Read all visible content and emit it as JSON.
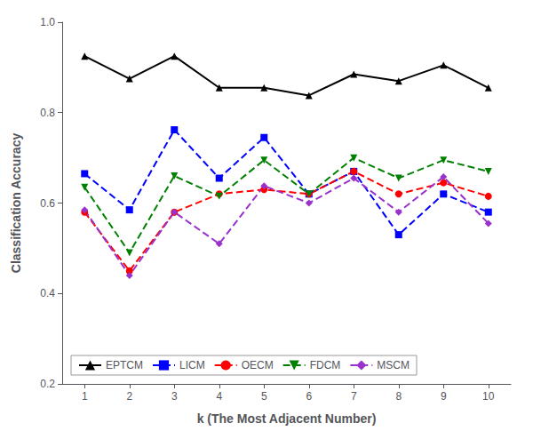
{
  "chart_data": {
    "type": "line",
    "xlabel": "k (The Most Adjacent Number)",
    "ylabel": "Classification Accuracy",
    "x": [
      1,
      2,
      3,
      4,
      5,
      6,
      7,
      8,
      9,
      10
    ],
    "series": [
      {
        "name": "EPTCM",
        "color": "#000000",
        "marker": "triangle",
        "line_style": "solid",
        "values": [
          0.925,
          0.875,
          0.925,
          0.855,
          0.855,
          0.838,
          0.885,
          0.87,
          0.905,
          0.855
        ]
      },
      {
        "name": "LICM",
        "color": "#0000FF",
        "marker": "square",
        "line_style": "dashed",
        "values": [
          0.665,
          0.585,
          0.762,
          0.655,
          0.745,
          0.62,
          0.67,
          0.53,
          0.62,
          0.58
        ]
      },
      {
        "name": "OECM",
        "color": "#FF0000",
        "marker": "circle",
        "line_style": "dashed",
        "values": [
          0.58,
          0.45,
          0.58,
          0.62,
          0.63,
          0.62,
          0.67,
          0.62,
          0.645,
          0.615
        ]
      },
      {
        "name": "FDCM",
        "color": "#008000",
        "marker": "triangle_down",
        "line_style": "dashed",
        "values": [
          0.635,
          0.49,
          0.66,
          0.615,
          0.695,
          0.62,
          0.7,
          0.655,
          0.695,
          0.67
        ]
      },
      {
        "name": "MSCM",
        "color": "#9932CC",
        "marker": "diamond",
        "line_style": "dashed",
        "values": [
          0.585,
          0.44,
          0.58,
          0.51,
          0.638,
          0.6,
          0.655,
          0.58,
          0.658,
          0.555
        ]
      }
    ],
    "xlim": [
      0.5,
      10.5
    ],
    "ylim": [
      0.2,
      1.0
    ],
    "xticks": [
      1,
      2,
      3,
      4,
      5,
      6,
      7,
      8,
      9,
      10
    ],
    "yticks": [
      0.2,
      0.4,
      0.6,
      0.8,
      {
        "value": 1.0,
        "label": "1.0"
      }
    ],
    "grid": false,
    "legend": "lower left"
  }
}
